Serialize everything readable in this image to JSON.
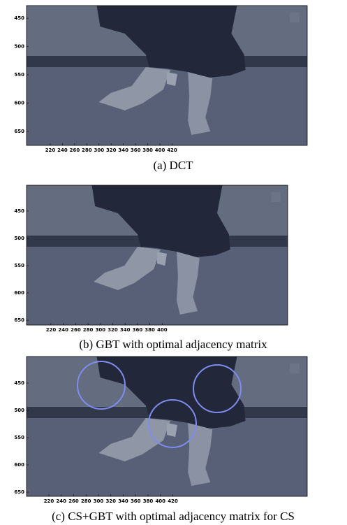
{
  "panels": [
    {
      "caption": "(a) DCT",
      "xticks": [
        220,
        240,
        260,
        280,
        300,
        320,
        340,
        360,
        380,
        400,
        420
      ],
      "yticks": [
        450,
        500,
        550,
        600,
        650
      ]
    },
    {
      "caption": "(b) GBT with optimal adjacency matrix",
      "xticks": [
        220,
        240,
        260,
        280,
        300,
        320,
        340,
        360,
        380,
        400
      ],
      "yticks": [
        450,
        500,
        550,
        600,
        650
      ]
    },
    {
      "caption": "(c) CS+GBT with optimal adjacency matrix for CS",
      "xticks": [
        220,
        240,
        260,
        280,
        300,
        320,
        340,
        360,
        380,
        400,
        420
      ],
      "yticks": [
        450,
        500,
        550,
        600,
        650
      ]
    }
  ]
}
